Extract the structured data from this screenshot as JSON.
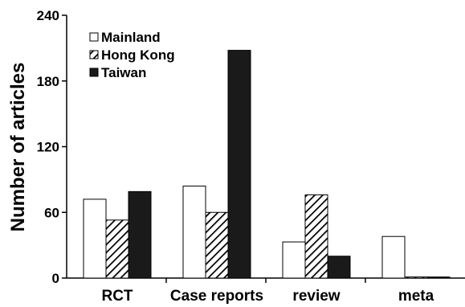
{
  "chart_data": {
    "type": "bar",
    "title": "",
    "xlabel": "",
    "ylabel": "Number of articles",
    "ylim": [
      0,
      240
    ],
    "yticks": [
      0,
      60,
      120,
      180,
      240
    ],
    "grid": false,
    "legend_position": "top-left",
    "categories": [
      "RCT",
      "Case reports",
      "review",
      "meta"
    ],
    "series": [
      {
        "name": "Mainland",
        "values": [
          72,
          84,
          33,
          38
        ],
        "fill": "#ffffff",
        "pattern": "none"
      },
      {
        "name": "Hong Kong",
        "values": [
          53,
          60,
          76,
          1
        ],
        "fill": "#ffffff",
        "pattern": "diagonal-hatch"
      },
      {
        "name": "Taiwan",
        "values": [
          79,
          208,
          20,
          1
        ],
        "fill": "#1a1a1a",
        "pattern": "none"
      }
    ]
  }
}
